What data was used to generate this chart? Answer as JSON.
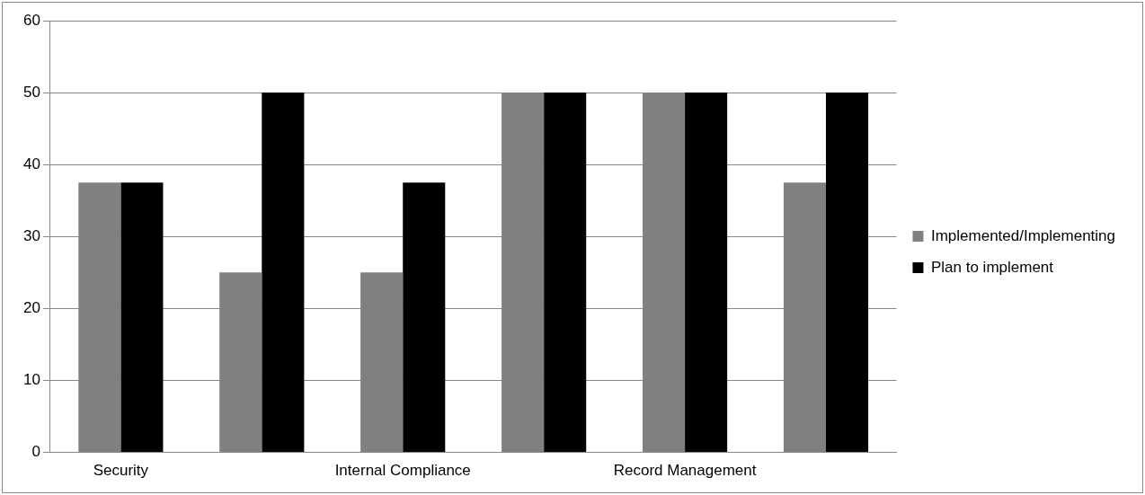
{
  "chart_data": {
    "type": "bar",
    "categories": [
      "Security",
      null,
      "Internal Compliance",
      null,
      "Record Management",
      null
    ],
    "series": [
      {
        "name": "Implemented/Implementing",
        "color": "#808080",
        "values": [
          37.5,
          25,
          25,
          50,
          50,
          37.5
        ]
      },
      {
        "name": "Plan to implement",
        "color": "#000000",
        "values": [
          37.5,
          50,
          37.5,
          50,
          50,
          50
        ]
      }
    ],
    "ylim": [
      0,
      60
    ],
    "yticks": [
      0,
      10,
      20,
      30,
      40,
      50,
      60
    ],
    "grid": "y",
    "legend": "right"
  }
}
